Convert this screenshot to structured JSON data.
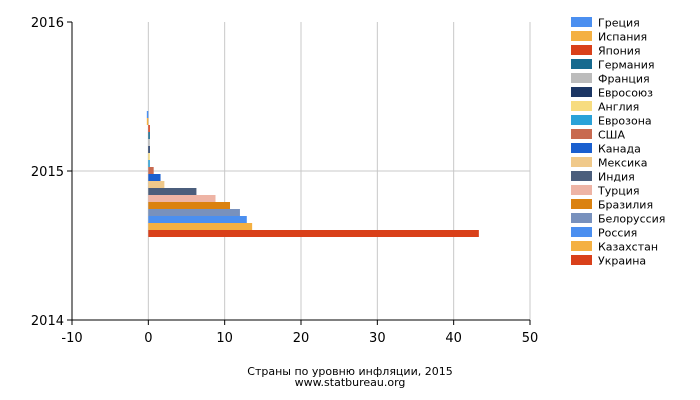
{
  "chart_data": {
    "type": "bar",
    "orientation": "horizontal",
    "title": "Страны по уровню инфляции, 2015",
    "source": "www.statbureau.org",
    "xlim": [
      -10,
      50
    ],
    "x_ticks": [
      "-10",
      "0",
      "10",
      "20",
      "30",
      "40",
      "50"
    ],
    "y_ticks": [
      "2016",
      "2015",
      "2014"
    ],
    "grid": true,
    "legend_position": "right",
    "category": "2015",
    "series": [
      {
        "name": "Греция",
        "value": -0.1,
        "color": "#4b8ff0"
      },
      {
        "name": "Испания",
        "value": -0.1,
        "color": "#f4b042"
      },
      {
        "name": "Япония",
        "value": 0.2,
        "color": "#d9401a"
      },
      {
        "name": "Германия",
        "value": 0.2,
        "color": "#166a8f"
      },
      {
        "name": "Франция",
        "value": 0.0,
        "color": "#bcbcbc"
      },
      {
        "name": "Евросоюз",
        "value": 0.0,
        "color": "#1c3664"
      },
      {
        "name": "Англия",
        "value": 0.1,
        "color": "#f7dc80"
      },
      {
        "name": "Еврозона",
        "value": 0.2,
        "color": "#2aa2d8"
      },
      {
        "name": "США",
        "value": 0.7,
        "color": "#c86a50"
      },
      {
        "name": "Канада",
        "value": 1.6,
        "color": "#1a5fcf"
      },
      {
        "name": "Мексика",
        "value": 2.1,
        "color": "#f0c98a"
      },
      {
        "name": "Индия",
        "value": 6.3,
        "color": "#4b5e7c"
      },
      {
        "name": "Турция",
        "value": 8.8,
        "color": "#eeb4a5"
      },
      {
        "name": "Бразилия",
        "value": 10.7,
        "color": "#db8210"
      },
      {
        "name": "Белоруссия",
        "value": 12.0,
        "color": "#7891bd"
      },
      {
        "name": "Россия",
        "value": 12.9,
        "color": "#4b8ff0"
      },
      {
        "name": "Казахстан",
        "value": 13.6,
        "color": "#f4b042"
      },
      {
        "name": "Украина",
        "value": 43.3,
        "color": "#d9401a"
      }
    ]
  }
}
